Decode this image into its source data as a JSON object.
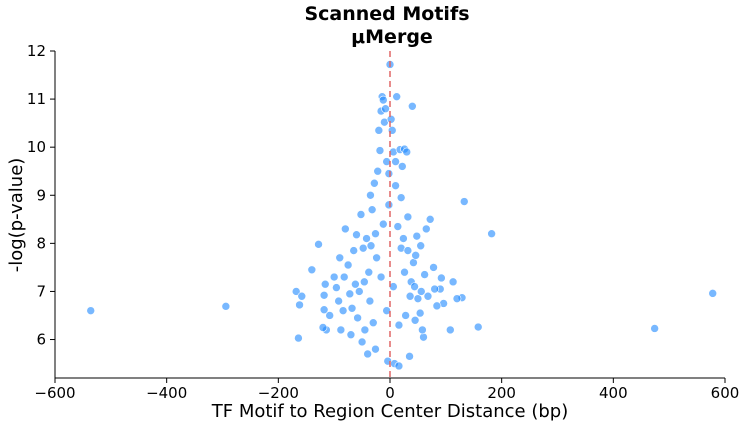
{
  "chart_data": {
    "type": "scatter",
    "title": "Scanned Motifs",
    "subtitle": "μMerge",
    "xlabel": "TF Motif to Region Center Distance (bp)",
    "ylabel": "-log(p-value)",
    "xlim": [
      -600,
      600
    ],
    "ylim": [
      5.2,
      12
    ],
    "xticks": [
      -600,
      -400,
      -200,
      0,
      200,
      400,
      600
    ],
    "yticks": [
      6,
      7,
      8,
      9,
      10,
      11,
      12
    ],
    "xtick_labels": [
      "−600",
      "−400",
      "−200",
      "0",
      "200",
      "400",
      "600"
    ],
    "ytick_labels": [
      "6",
      "7",
      "8",
      "9",
      "10",
      "11",
      "12"
    ],
    "grid": false,
    "legend": "none",
    "reference_line": {
      "x": 0,
      "style": "dashed",
      "color": "#e06666"
    },
    "point_color": "#1e88ff",
    "series": [
      {
        "points": [
          [
            -536,
            6.6
          ],
          [
            -294,
            6.69
          ],
          [
            578,
            6.96
          ],
          [
            474,
            6.23
          ],
          [
            182,
            8.2
          ],
          [
            133,
            8.87
          ],
          [
            158,
            6.26
          ],
          [
            129,
            6.87
          ],
          [
            120,
            6.85
          ],
          [
            113,
            7.2
          ],
          [
            108,
            6.2
          ],
          [
            96,
            6.75
          ],
          [
            92,
            7.28
          ],
          [
            90,
            7.05
          ],
          [
            84,
            6.7
          ],
          [
            80,
            7.05
          ],
          [
            78,
            7.5
          ],
          [
            72,
            8.5
          ],
          [
            68,
            6.9
          ],
          [
            60,
            6.05
          ],
          [
            -168,
            7.0
          ],
          [
            -162,
            6.72
          ],
          [
            -164,
            6.03
          ],
          [
            -158,
            6.9
          ],
          [
            -140,
            7.45
          ],
          [
            -128,
            7.98
          ],
          [
            -118,
            6.62
          ],
          [
            -118,
            6.92
          ],
          [
            -116,
            7.15
          ],
          [
            -114,
            6.2
          ],
          [
            -120,
            6.25
          ],
          [
            -100,
            7.3
          ],
          [
            -96,
            7.08
          ],
          [
            -92,
            6.8
          ],
          [
            -88,
            6.2
          ],
          [
            -84,
            6.6
          ],
          [
            -82,
            7.3
          ],
          [
            -80,
            8.3
          ],
          [
            -75,
            7.55
          ],
          [
            -72,
            6.95
          ],
          [
            -70,
            6.1
          ],
          [
            -65,
            7.85
          ],
          [
            -60,
            8.18
          ],
          [
            -58,
            6.45
          ],
          [
            -55,
            7.0
          ],
          [
            -52,
            8.6
          ],
          [
            -50,
            5.95
          ],
          [
            -48,
            7.9
          ],
          [
            -45,
            6.2
          ],
          [
            -42,
            8.1
          ],
          [
            -40,
            5.7
          ],
          [
            -38,
            7.4
          ],
          [
            -35,
            9.0
          ],
          [
            -32,
            8.7
          ],
          [
            -30,
            6.35
          ],
          [
            -28,
            9.25
          ],
          [
            -26,
            5.8
          ],
          [
            -24,
            7.7
          ],
          [
            -22,
            9.5
          ],
          [
            -20,
            10.35
          ],
          [
            -18,
            9.93
          ],
          [
            -16,
            10.75
          ],
          [
            -14,
            11.05
          ],
          [
            -12,
            10.98
          ],
          [
            -10,
            10.52
          ],
          [
            -8,
            10.8
          ],
          [
            -6,
            9.7
          ],
          [
            -4,
            5.55
          ],
          [
            -2,
            8.8
          ],
          [
            0,
            11.72
          ],
          [
            2,
            10.58
          ],
          [
            4,
            10.35
          ],
          [
            6,
            9.9
          ],
          [
            8,
            5.5
          ],
          [
            10,
            9.2
          ],
          [
            12,
            11.05
          ],
          [
            14,
            8.35
          ],
          [
            16,
            5.45
          ],
          [
            18,
            9.95
          ],
          [
            20,
            7.9
          ],
          [
            22,
            9.6
          ],
          [
            24,
            8.1
          ],
          [
            26,
            9.96
          ],
          [
            28,
            6.5
          ],
          [
            30,
            9.9
          ],
          [
            32,
            8.55
          ],
          [
            35,
            5.65
          ],
          [
            38,
            7.2
          ],
          [
            40,
            10.85
          ],
          [
            42,
            7.6
          ],
          [
            45,
            6.4
          ],
          [
            48,
            8.15
          ],
          [
            50,
            6.85
          ],
          [
            55,
            7.95
          ],
          [
            58,
            6.2
          ],
          [
            62,
            7.35
          ],
          [
            65,
            8.3
          ],
          [
            -108,
            6.5
          ],
          [
            -90,
            7.7
          ],
          [
            -68,
            6.65
          ],
          [
            -46,
            7.2
          ],
          [
            -36,
            6.8
          ],
          [
            -26,
            8.2
          ],
          [
            -16,
            7.3
          ],
          [
            -6,
            6.6
          ],
          [
            6,
            7.1
          ],
          [
            16,
            6.3
          ],
          [
            26,
            7.4
          ],
          [
            36,
            6.9
          ],
          [
            46,
            7.75
          ],
          [
            56,
            7.0
          ],
          [
            -62,
            7.15
          ],
          [
            -34,
            7.95
          ],
          [
            -12,
            8.4
          ],
          [
            -2,
            9.45
          ],
          [
            10,
            9.7
          ],
          [
            20,
            8.95
          ],
          [
            32,
            7.85
          ],
          [
            44,
            7.1
          ],
          [
            54,
            6.55
          ]
        ]
      }
    ]
  }
}
